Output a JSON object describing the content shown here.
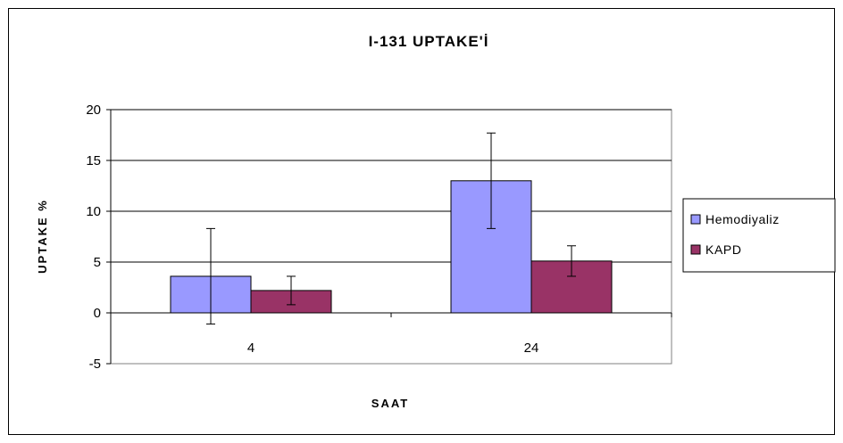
{
  "colors": {
    "hemodiyaliz": "#9999ff",
    "kapd": "#993366",
    "axis": "#000000",
    "grid": "#000000",
    "plot_border": "#808080"
  },
  "chart_data": {
    "type": "bar",
    "title": "I-131 UPTAKE'İ",
    "xlabel": "SAAT",
    "ylabel": "UPTAKE %",
    "categories": [
      "4",
      "24"
    ],
    "series": [
      {
        "name": "Hemodiyaliz",
        "values": [
          3.6,
          13.0
        ],
        "error": [
          4.7,
          4.7
        ]
      },
      {
        "name": "KAPD",
        "values": [
          2.2,
          5.1
        ],
        "error": [
          1.4,
          1.5
        ]
      }
    ],
    "ylim": [
      -5,
      20
    ],
    "yticks": [
      "-5",
      "0",
      "5",
      "10",
      "15",
      "20"
    ],
    "grid": true,
    "legend": "right"
  }
}
